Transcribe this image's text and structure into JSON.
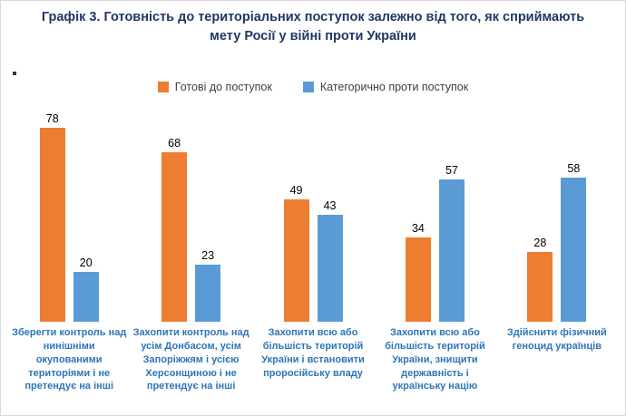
{
  "title": "Графік 3. Готовність до територіальних поступок залежно від того, як сприймають мету Росії у війні проти України",
  "chart_data": {
    "type": "bar",
    "title": "Графік 3. Готовність до територіальних поступок залежно від того, як сприймають мету Росії у війні проти України",
    "categories": [
      "Зберегти контроль над нинішніми окупованими територіями і не претендує на інші",
      "Захопити контроль над усім Донбасом, усім Запоріжжям і усією Херсонщиною і не претендує на інші",
      "Захопити всю або більшість територій України і встановити проросійську владу",
      "Захопити всю або більшість територій України, знищити державність і українську націю",
      "Здійснити фізичний геноцид українців"
    ],
    "series": [
      {
        "name": "Готові до поступок",
        "color": "#ED7D31",
        "values": [
          78,
          68,
          49,
          34,
          28
        ]
      },
      {
        "name": "Категорично проти поступок",
        "color": "#5B9BD5",
        "values": [
          20,
          23,
          43,
          57,
          58
        ]
      }
    ],
    "xlabel": "",
    "ylabel": "",
    "ylim": [
      0,
      80
    ],
    "grid": false,
    "legend_position": "top",
    "value_labels": true
  }
}
